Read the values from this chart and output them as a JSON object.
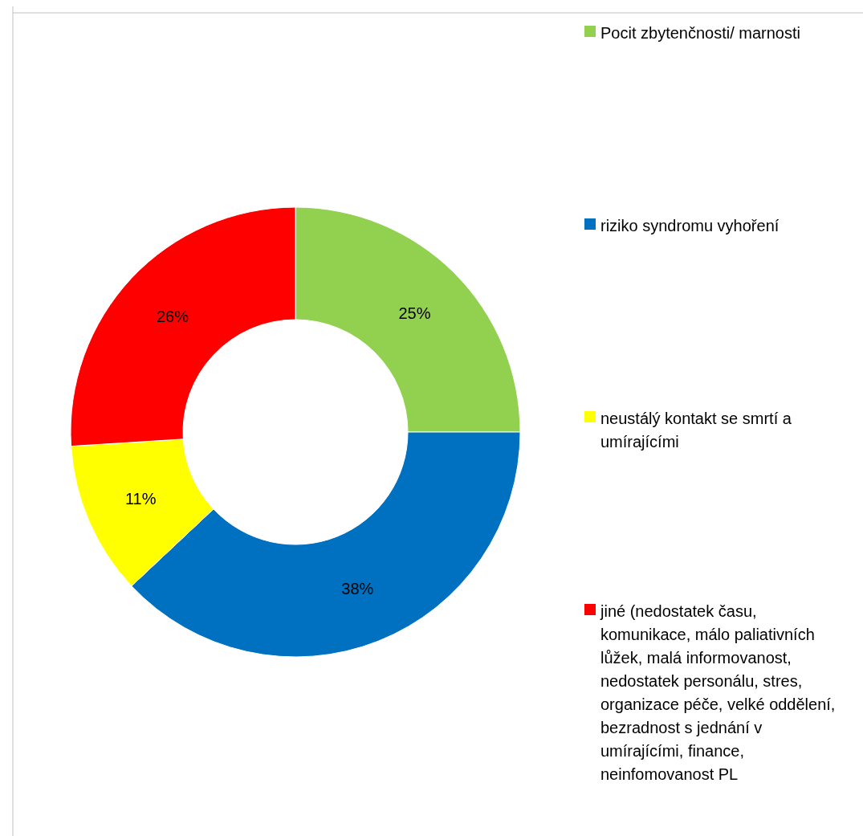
{
  "chart_data": {
    "type": "donut",
    "categories": [
      "Pocit zbytenčnosti/ marnosti",
      "riziko syndromu vyhoření",
      "neustálý kontakt se smrtí a umírajícími",
      "jiné (nedostatek času, komunikace, málo paliativních lůžek, malá informovanost, nedostatek personálu, stres, organizace péče, velké oddělení, bezradnost s jednání v umírajícími, finance, neinfomovanost PL"
    ],
    "values": [
      25,
      38,
      11,
      26
    ],
    "colors": [
      "#92d050",
      "#0070c0",
      "#ffff00",
      "#ff0000"
    ],
    "value_labels": [
      "25%",
      "38%",
      "11%",
      "26%"
    ],
    "legend": "right"
  }
}
